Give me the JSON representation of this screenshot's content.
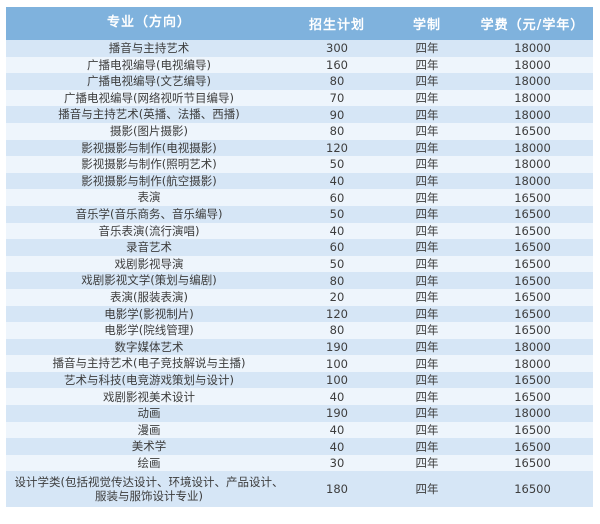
{
  "table": {
    "headers": [
      "专业（方向）",
      "招生计划",
      "学制",
      "学费（元/学年）"
    ],
    "rows": [
      {
        "major": "播音与主持艺术",
        "quota": "300",
        "duration": "四年",
        "fee": "18000"
      },
      {
        "major": "广播电视编导(电视编导)",
        "quota": "160",
        "duration": "四年",
        "fee": "18000"
      },
      {
        "major": "广播电视编导(文艺编导)",
        "quota": "80",
        "duration": "四年",
        "fee": "18000"
      },
      {
        "major": "广播电视编导(网络视听节目编导)",
        "quota": "70",
        "duration": "四年",
        "fee": "18000"
      },
      {
        "major": "播音与主持艺术(英播、法播、西播)",
        "quota": "90",
        "duration": "四年",
        "fee": "18000"
      },
      {
        "major": "摄影(图片摄影)",
        "quota": "80",
        "duration": "四年",
        "fee": "16500"
      },
      {
        "major": "影视摄影与制作(电视摄影)",
        "quota": "120",
        "duration": "四年",
        "fee": "18000"
      },
      {
        "major": "影视摄影与制作(照明艺术)",
        "quota": "50",
        "duration": "四年",
        "fee": "18000"
      },
      {
        "major": "影视摄影与制作(航空摄影)",
        "quota": "40",
        "duration": "四年",
        "fee": "18000"
      },
      {
        "major": "表演",
        "quota": "60",
        "duration": "四年",
        "fee": "16500"
      },
      {
        "major": "音乐学(音乐商务、音乐编导)",
        "quota": "50",
        "duration": "四年",
        "fee": "16500"
      },
      {
        "major": "音乐表演(流行演唱)",
        "quota": "40",
        "duration": "四年",
        "fee": "16500"
      },
      {
        "major": "录音艺术",
        "quota": "60",
        "duration": "四年",
        "fee": "16500"
      },
      {
        "major": "戏剧影视导演",
        "quota": "50",
        "duration": "四年",
        "fee": "16500"
      },
      {
        "major": "戏剧影视文学(策划与编剧)",
        "quota": "80",
        "duration": "四年",
        "fee": "16500"
      },
      {
        "major": "表演(服装表演)",
        "quota": "20",
        "duration": "四年",
        "fee": "16500"
      },
      {
        "major": "电影学(影视制片)",
        "quota": "120",
        "duration": "四年",
        "fee": "16500"
      },
      {
        "major": "电影学(院线管理)",
        "quota": "80",
        "duration": "四年",
        "fee": "16500"
      },
      {
        "major": "数字媒体艺术",
        "quota": "190",
        "duration": "四年",
        "fee": "18000"
      },
      {
        "major": "播音与主持艺术(电子竞技解说与主播)",
        "quota": "100",
        "duration": "四年",
        "fee": "18000"
      },
      {
        "major": "艺术与科技(电竞游戏策划与设计)",
        "quota": "100",
        "duration": "四年",
        "fee": "16500"
      },
      {
        "major": "戏剧影视美术设计",
        "quota": "40",
        "duration": "四年",
        "fee": "16500"
      },
      {
        "major": "动画",
        "quota": "190",
        "duration": "四年",
        "fee": "18000"
      },
      {
        "major": "漫画",
        "quota": "40",
        "duration": "四年",
        "fee": "16500"
      },
      {
        "major": "美术学",
        "quota": "40",
        "duration": "四年",
        "fee": "16500"
      },
      {
        "major": "绘画",
        "quota": "30",
        "duration": "四年",
        "fee": "16500"
      },
      {
        "major": "设计学类(包括视觉传达设计、环境设计、产品设计、服装与服饰设计专业)",
        "quota": "180",
        "duration": "四年",
        "fee": "16500"
      }
    ]
  },
  "colors": {
    "header_bg": "#7fb2dd",
    "row_odd_bg": "#d6e6f6",
    "row_even_bg": "#eef5fc",
    "text": "#3d3d3d"
  }
}
